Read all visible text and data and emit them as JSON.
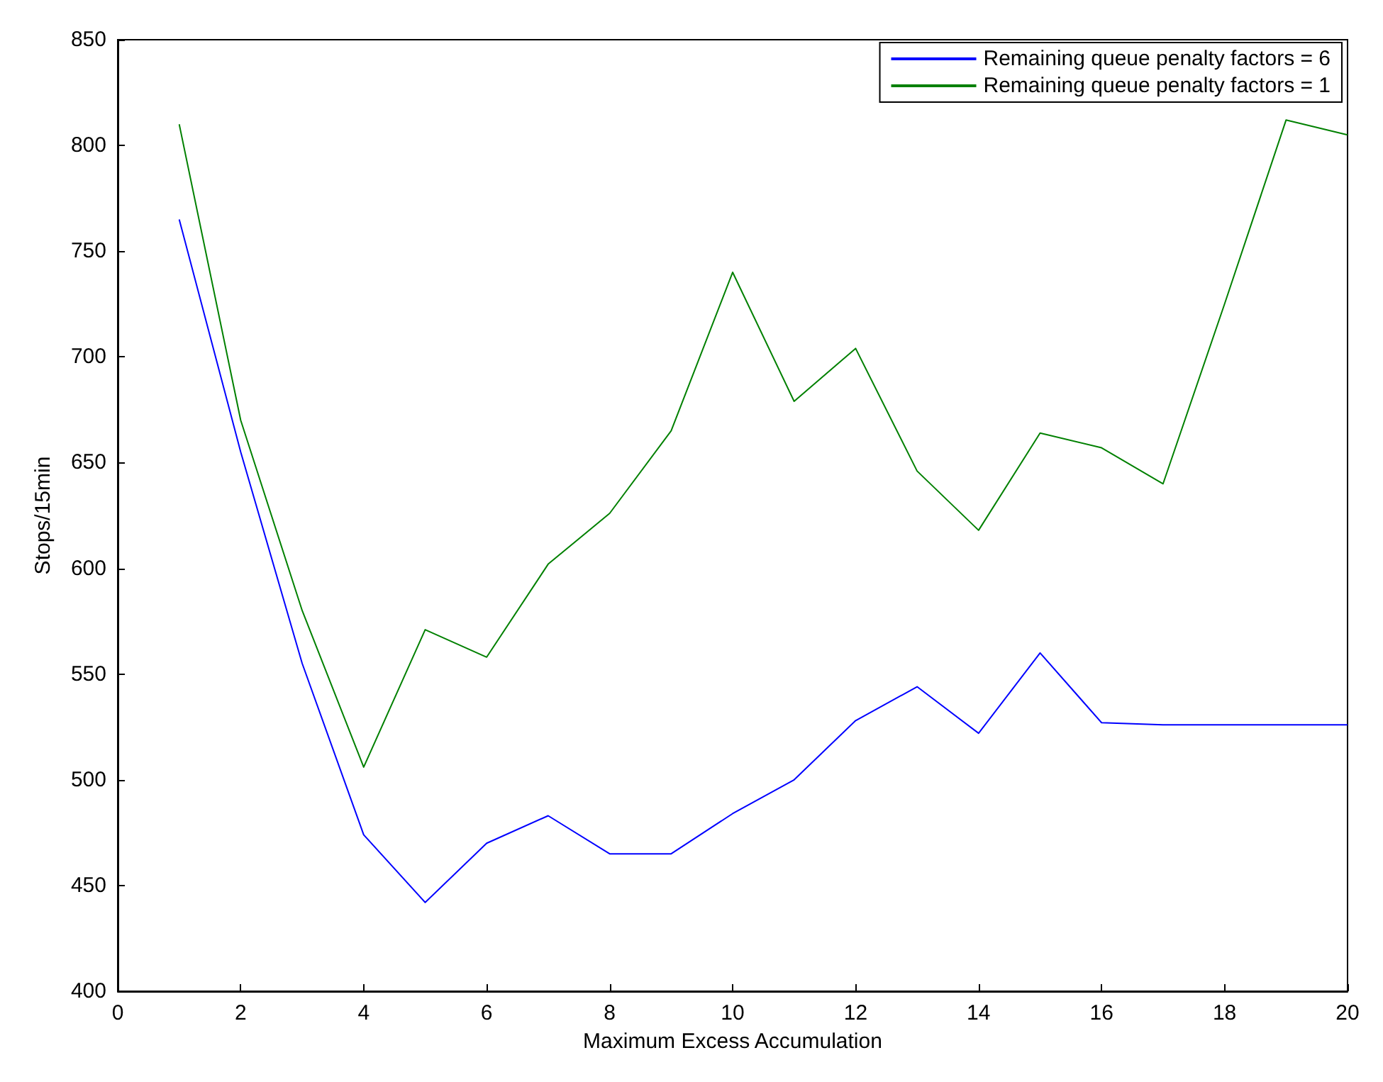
{
  "chart_data": {
    "type": "line",
    "xlabel": "Maximum Excess Accumulation",
    "ylabel": "Stops/15min",
    "x": [
      1,
      2,
      3,
      4,
      5,
      6,
      7,
      8,
      9,
      10,
      11,
      12,
      13,
      14,
      15,
      16,
      17,
      18,
      19,
      20
    ],
    "series": [
      {
        "name": "Remaining queue penalty factors = 6",
        "color": "#0000ff",
        "values": [
          765,
          655,
          555,
          474,
          442,
          470,
          483,
          465,
          465,
          484,
          500,
          528,
          544,
          522,
          560,
          527,
          526,
          526,
          526,
          526
        ]
      },
      {
        "name": "Remaining queue penalty factors = 1",
        "color": "#008000",
        "values": [
          810,
          670,
          580,
          506,
          571,
          558,
          602,
          626,
          665,
          740,
          679,
          704,
          646,
          618,
          664,
          657,
          640,
          725,
          812,
          805
        ]
      }
    ],
    "xlim": [
      0,
      20
    ],
    "xticks": [
      0,
      2,
      4,
      6,
      8,
      10,
      12,
      14,
      16,
      18,
      20
    ],
    "ylim": [
      400,
      850
    ],
    "yticks": [
      400,
      450,
      500,
      550,
      600,
      650,
      700,
      750,
      800,
      850
    ],
    "grid": false,
    "legend": "top right",
    "marker": "none",
    "line_style": "solid"
  }
}
